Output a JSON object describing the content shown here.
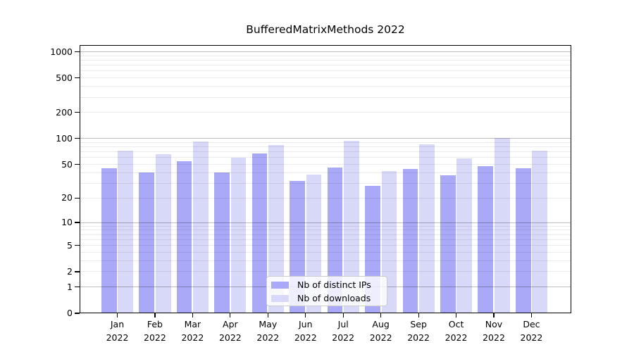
{
  "chart_data": {
    "type": "bar",
    "title": "BufferedMatrixMethods 2022",
    "categories": [
      "Jan",
      "Feb",
      "Mar",
      "Apr",
      "May",
      "Jun",
      "Jul",
      "Aug",
      "Sep",
      "Oct",
      "Nov",
      "Dec"
    ],
    "xtick_year": "2022",
    "series": [
      {
        "name": "Nb of distinct IPs",
        "color": "#a9a9f8",
        "values": [
          45,
          40,
          55,
          40,
          67,
          32,
          46,
          28,
          44,
          37,
          48,
          45
        ]
      },
      {
        "name": "Nb of downloads",
        "color": "#d8d8f8",
        "values": [
          72,
          66,
          93,
          60,
          84,
          38,
          95,
          42,
          85,
          59,
          101,
          72
        ]
      }
    ],
    "yscale": "log10(value+1)",
    "yticks": [
      0,
      1,
      2,
      5,
      10,
      20,
      50,
      100,
      200,
      500,
      1000
    ],
    "ylim": [
      0,
      1200
    ],
    "grid": {
      "orientation": "horizontal",
      "major_at": [
        1,
        10,
        100,
        1000
      ],
      "minor_at": [
        2,
        3,
        4,
        5,
        6,
        7,
        8,
        9,
        20,
        30,
        40,
        50,
        60,
        70,
        80,
        90,
        200,
        300,
        400,
        500,
        600,
        700,
        800,
        900
      ]
    },
    "legend_position": "inside-bottom-center",
    "colors": {
      "grid_major": "rgba(0,0,0,0.26)",
      "grid_minor": "rgba(0,0,0,0.08)",
      "axis_text": "#000000",
      "spine": "#000000",
      "legend_border": "#cccccc",
      "legend_bg": "rgba(255,255,255,0.8)"
    }
  }
}
